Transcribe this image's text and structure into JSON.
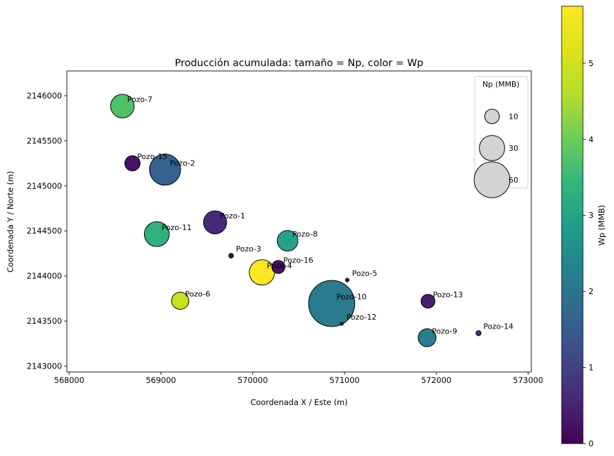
{
  "chart_data": {
    "type": "scatter",
    "title": "Producción acumulada: tamaño = Np, color = Wp",
    "xlabel": "Coordenada X / Este (m)",
    "ylabel": "Coordenada Y / Norte (m)",
    "xlim": [
      567975,
      573035
    ],
    "ylim": [
      2142935,
      2146275
    ],
    "xticks": [
      568000,
      569000,
      570000,
      571000,
      572000,
      573000
    ],
    "yticks": [
      2143000,
      2143500,
      2144000,
      2144500,
      2145000,
      2145500,
      2146000
    ],
    "grid": false,
    "size_variable": "Np (MMB)",
    "color_variable": "Wp (MMB)",
    "colormap": "viridis",
    "colorbar": {
      "label": "Wp (MMB)",
      "min": 0,
      "max": 5.75,
      "ticks": [
        0,
        1,
        2,
        3,
        4,
        5
      ]
    },
    "size_legend": {
      "title": "Np (MMB)",
      "location": "upper right",
      "entries": [
        {
          "label": "10",
          "np": 10
        },
        {
          "label": "30",
          "np": 30
        },
        {
          "label": "60",
          "np": 60
        }
      ]
    },
    "points": [
      {
        "name": "Pozo-1",
        "x": 569590,
        "y": 2144595,
        "np": 25,
        "wp": 0.6
      },
      {
        "name": "Pozo-2",
        "x": 569045,
        "y": 2145180,
        "np": 45,
        "wp": 1.6
      },
      {
        "name": "Pozo-3",
        "x": 569765,
        "y": 2144225,
        "np": 1,
        "wp": 0.1
      },
      {
        "name": "Pozo-4",
        "x": 570100,
        "y": 2144040,
        "np": 30,
        "wp": 5.75
      },
      {
        "name": "Pozo-5",
        "x": 571030,
        "y": 2143955,
        "np": 0.6,
        "wp": 0.15
      },
      {
        "name": "Pozo-6",
        "x": 569210,
        "y": 2143725,
        "np": 14,
        "wp": 4.9
      },
      {
        "name": "Pozo-7",
        "x": 568580,
        "y": 2145885,
        "np": 26,
        "wp": 3.7
      },
      {
        "name": "Pozo-8",
        "x": 570380,
        "y": 2144390,
        "np": 20,
        "wp": 3.0
      },
      {
        "name": "Pozo-9",
        "x": 571900,
        "y": 2143315,
        "np": 15,
        "wp": 2.2
      },
      {
        "name": "Pozo-10",
        "x": 570860,
        "y": 2143695,
        "np": 100,
        "wp": 2.15
      },
      {
        "name": "Pozo-11",
        "x": 568955,
        "y": 2144465,
        "np": 29,
        "wp": 3.3
      },
      {
        "name": "Pozo-12",
        "x": 570970,
        "y": 2143470,
        "np": 0.2,
        "wp": 0.1
      },
      {
        "name": "Pozo-13",
        "x": 571910,
        "y": 2143720,
        "np": 9,
        "wp": 0.45
      },
      {
        "name": "Pozo-14",
        "x": 572460,
        "y": 2143365,
        "np": 1.2,
        "wp": 0.6
      },
      {
        "name": "Pozo-15",
        "x": 568690,
        "y": 2145250,
        "np": 11,
        "wp": 0.25
      },
      {
        "name": "Pozo-16",
        "x": 570280,
        "y": 2144100,
        "np": 8,
        "wp": 0.3
      }
    ]
  }
}
